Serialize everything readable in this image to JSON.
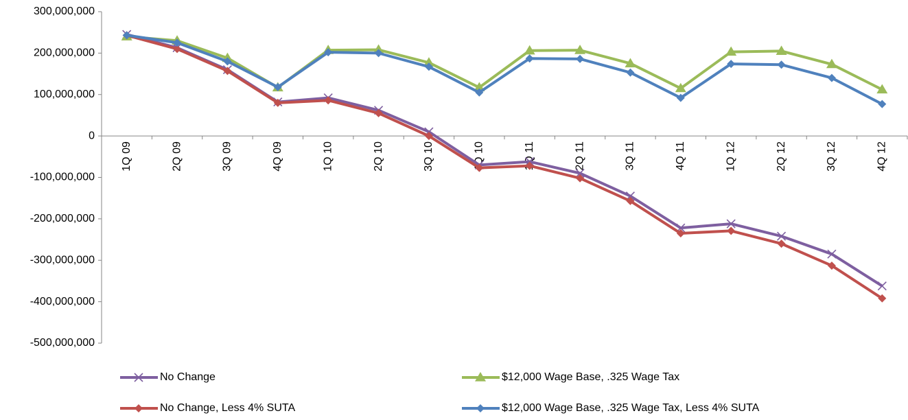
{
  "chart_data": {
    "type": "line",
    "categories": [
      "1Q 09",
      "2Q 09",
      "3Q 09",
      "4Q 09",
      "1Q 10",
      "2Q 10",
      "3Q 10",
      "4Q 10",
      "1Q 11",
      "2Q 11",
      "3Q 11",
      "4Q 11",
      "1Q 12",
      "2Q 12",
      "3Q 12",
      "4Q 12"
    ],
    "series": [
      {
        "name": "No Change",
        "color": "#7e5fa0",
        "marker": "x",
        "values": [
          245000000,
          213000000,
          160000000,
          82000000,
          92000000,
          62000000,
          10000000,
          -70000000,
          -62000000,
          -90000000,
          -145000000,
          -222000000,
          -212000000,
          -242000000,
          -285000000,
          -362000000
        ]
      },
      {
        "name": "$12,000 Wage Base, .325 Wage Tax",
        "color": "#9bbb59",
        "marker": "triangle",
        "values": [
          240000000,
          230000000,
          188000000,
          117000000,
          207000000,
          208000000,
          177000000,
          117000000,
          206000000,
          207000000,
          175000000,
          115000000,
          203000000,
          205000000,
          173000000,
          112000000
        ]
      },
      {
        "name": "No Change, Less 4% SUTA",
        "color": "#c0504d",
        "marker": "diamond",
        "values": [
          243000000,
          210000000,
          157000000,
          80000000,
          86000000,
          55000000,
          0,
          -77000000,
          -72000000,
          -102000000,
          -157000000,
          -235000000,
          -229000000,
          -260000000,
          -313000000,
          -392000000
        ]
      },
      {
        "name": "$12,000 Wage Base, .325 Wage Tax, Less 4% SUTA",
        "color": "#4f81bd",
        "marker": "diamond",
        "values": [
          243000000,
          225000000,
          180000000,
          118000000,
          202000000,
          200000000,
          167000000,
          105000000,
          187000000,
          186000000,
          153000000,
          92000000,
          174000000,
          172000000,
          140000000,
          77000000
        ]
      }
    ],
    "ylim": [
      -500000000,
      300000000
    ],
    "yticks": [
      {
        "value": -500000000,
        "label": "-500,000,000"
      },
      {
        "value": -400000000,
        "label": "-400,000,000"
      },
      {
        "value": -300000000,
        "label": "-300,000,000"
      },
      {
        "value": -200000000,
        "label": "-200,000,000"
      },
      {
        "value": -100000000,
        "label": "-100,000,000"
      },
      0,
      {
        "value": 100000000,
        "label": "100,000,000"
      },
      {
        "value": 200000000,
        "label": "200,000,000"
      },
      {
        "value": 300000000,
        "label": "300,000,000"
      }
    ],
    "grid": false,
    "legend": "bottom"
  }
}
